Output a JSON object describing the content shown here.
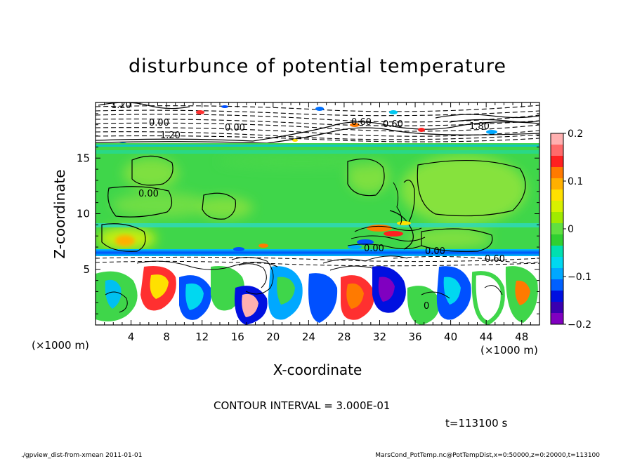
{
  "chart_data": {
    "type": "heatmap",
    "title": "disturbunce of potential temperature",
    "xlabel": "X-coordinate",
    "ylabel": "Z-coordinate",
    "x_unit_left": "(×1000 m)",
    "x_unit_right": "(×1000 m)",
    "xlim": [
      0,
      50
    ],
    "ylim": [
      0,
      20
    ],
    "xticks": [
      4,
      8,
      12,
      16,
      20,
      24,
      28,
      32,
      36,
      40,
      44,
      48
    ],
    "yticks": [
      5,
      10,
      15
    ],
    "colorbar": {
      "ticks": [
        0.2,
        0.1,
        0,
        -0.1,
        -0.2
      ],
      "tick_labels": [
        "0.2",
        "0.1",
        "0",
        "−0.1",
        "−0.2"
      ],
      "range": [
        -0.2,
        0.2
      ],
      "colors": [
        "#ffb0b0",
        "#ff6a6a",
        "#ff2020",
        "#ff7a00",
        "#ffb000",
        "#ffe000",
        "#d8f000",
        "#a0ea00",
        "#60e040",
        "#30d030",
        "#00e0b0",
        "#00d8f0",
        "#00a8ff",
        "#0060ff",
        "#0010e0",
        "#3a00b0",
        "#8000c0"
      ]
    },
    "contour_interval": "CONTOUR INTERVAL = 3.000E-01",
    "contour_labels": [
      "1.20",
      "0.00",
      "1.20",
      "0.00",
      "0.60",
      "0.60",
      "1.80",
      "0.00",
      "0.00",
      "0.00",
      "0.60",
      "0"
    ],
    "time_label": "t=113100 s"
  },
  "footer": {
    "left": "./gpview_dist-from-xmean  2011-01-01",
    "right": "MarsCond_PotTemp.nc@PotTempDist,x=0:50000,z=0:20000,t=113100"
  }
}
